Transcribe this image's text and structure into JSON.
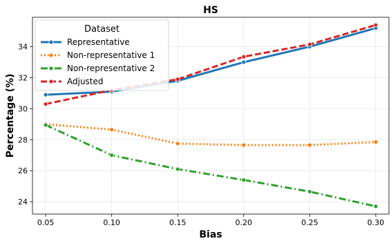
{
  "chart_data": {
    "type": "line",
    "title": "HS",
    "xlabel": "Bias",
    "ylabel": "Percentage (%)",
    "x": [
      0.05,
      0.1,
      0.15,
      0.2,
      0.25,
      0.3
    ],
    "x_tick_labels": [
      "0.05",
      "0.10",
      "0.15",
      "0.20",
      "0.25",
      "0.30"
    ],
    "y_ticks": [
      24,
      26,
      28,
      30,
      32,
      34
    ],
    "y_tick_labels": [
      "24",
      "26",
      "28",
      "30",
      "32",
      "34"
    ],
    "xlim": [
      0.04,
      0.31
    ],
    "ylim": [
      23.2,
      35.9
    ],
    "grid": true,
    "legend": {
      "title": "Dataset",
      "placement": "top-left"
    },
    "series": [
      {
        "name": "Representative",
        "values": [
          30.9,
          31.1,
          31.8,
          33.0,
          34.0,
          35.2
        ],
        "color": "#1f77b4",
        "dash": "solid"
      },
      {
        "name": "Non-representative 1",
        "values": [
          29.0,
          28.65,
          27.75,
          27.65,
          27.65,
          27.85
        ],
        "color": "#ff7f0e",
        "dash": "dotted"
      },
      {
        "name": "Non-representative 2",
        "values": [
          28.95,
          27.0,
          26.1,
          25.4,
          24.65,
          23.7
        ],
        "color": "#2ca02c",
        "dash": "dashdot"
      },
      {
        "name": "Adjusted",
        "values": [
          30.3,
          31.2,
          31.9,
          33.35,
          34.15,
          35.4
        ],
        "color": "#d62728",
        "dash": "dashed"
      }
    ]
  }
}
